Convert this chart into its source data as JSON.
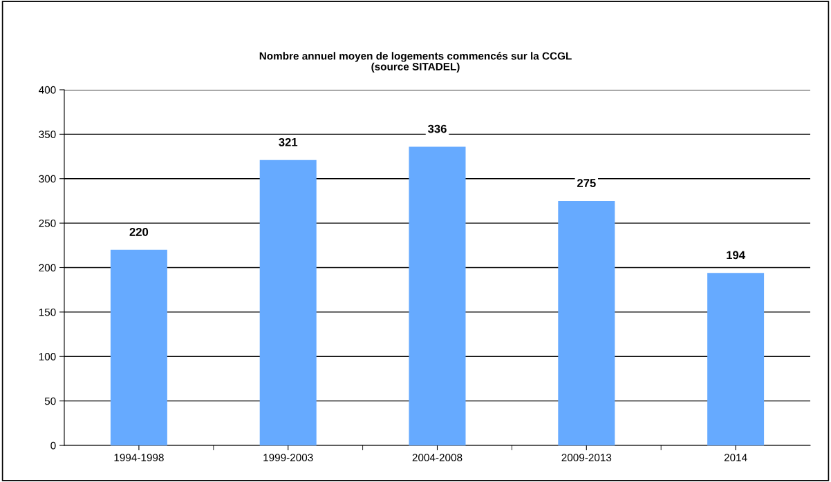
{
  "chart_data": {
    "type": "bar",
    "title": "Nombre annuel moyen de logements commencés sur la CCGL\n(source SITADEL)",
    "categories": [
      "1994-1998",
      "1999-2003",
      "2004-2008",
      "2009-2013",
      "2014"
    ],
    "values": [
      220,
      321,
      336,
      275,
      194
    ],
    "color": "#66aaff",
    "ylim": [
      0,
      400
    ],
    "yticks": [
      0,
      50,
      100,
      150,
      200,
      250,
      300,
      350,
      400
    ],
    "grid": "y",
    "data_labels": true
  }
}
